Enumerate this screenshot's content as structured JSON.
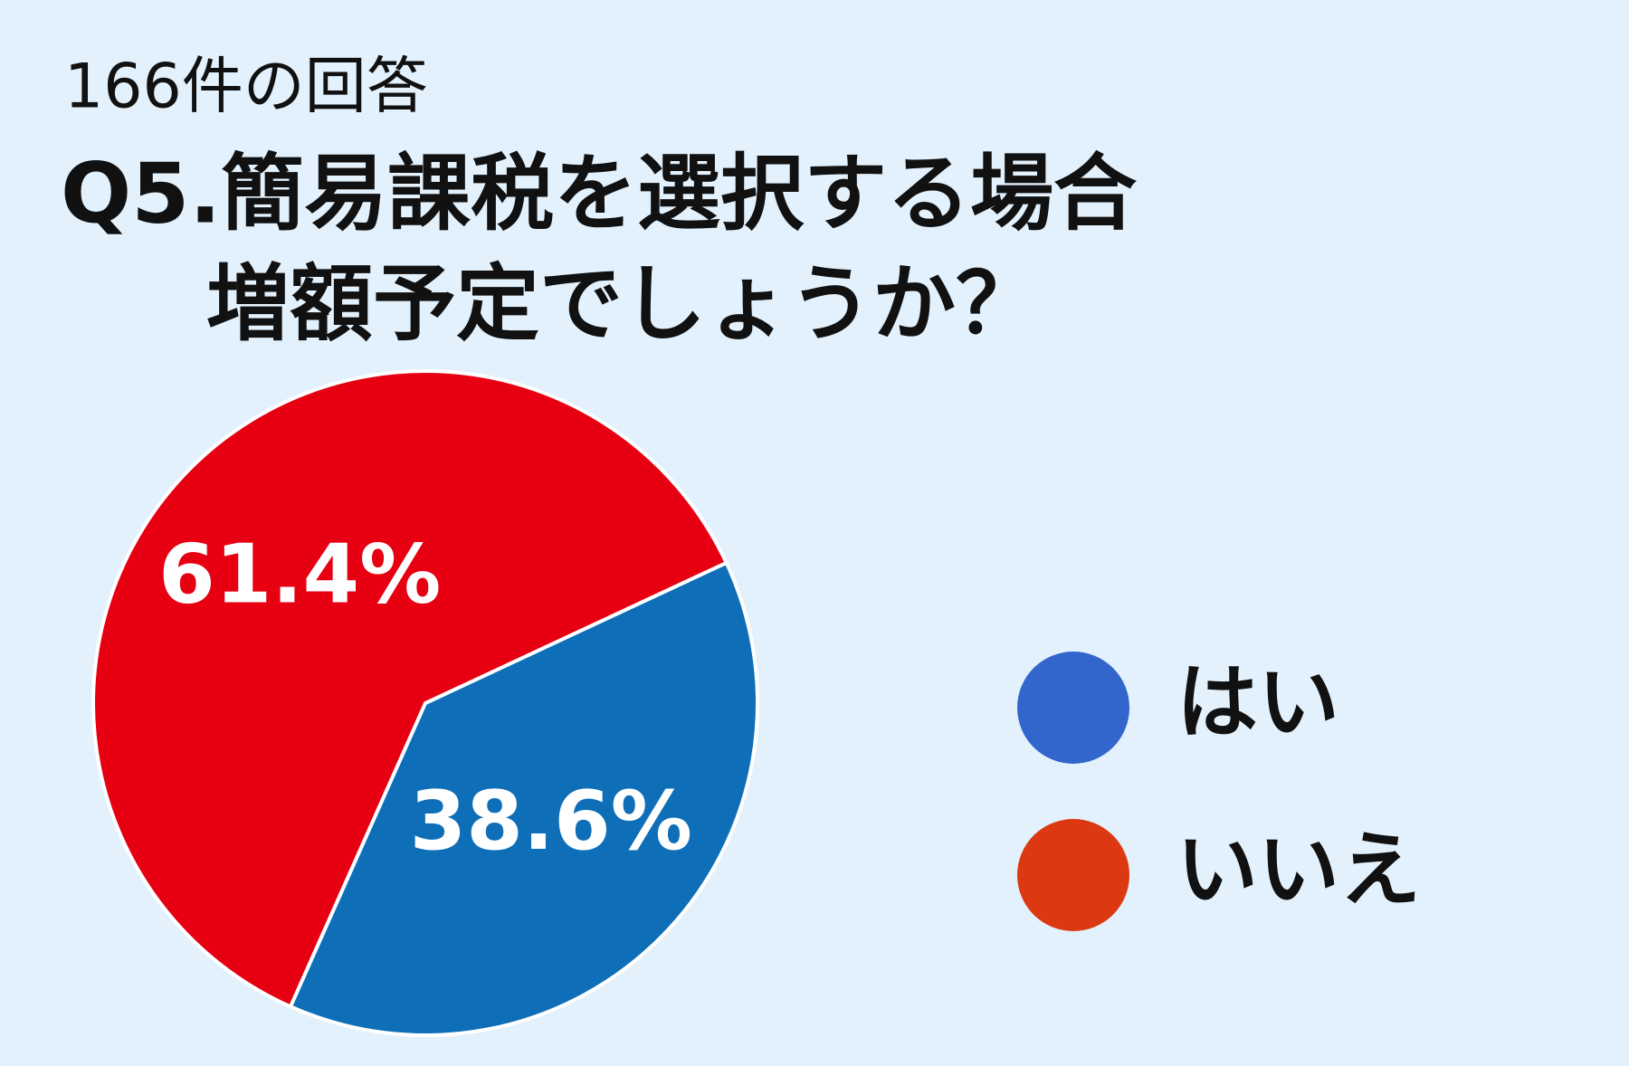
{
  "chart_data": {
    "type": "pie",
    "subtitle": "166件の回答",
    "title": [
      "Q5.簡易課税を選択する場合",
      "増額予定でしょうか？"
    ],
    "categories": [
      "はい",
      "いいえ"
    ],
    "values": [
      38.6,
      61.4
    ],
    "value_labels": [
      "38.6%",
      "61.4%"
    ],
    "colors": [
      "#0e6eb8",
      "#e60012"
    ],
    "legend_colors": [
      "#3366cc",
      "#dc3912"
    ],
    "legend": "right"
  }
}
